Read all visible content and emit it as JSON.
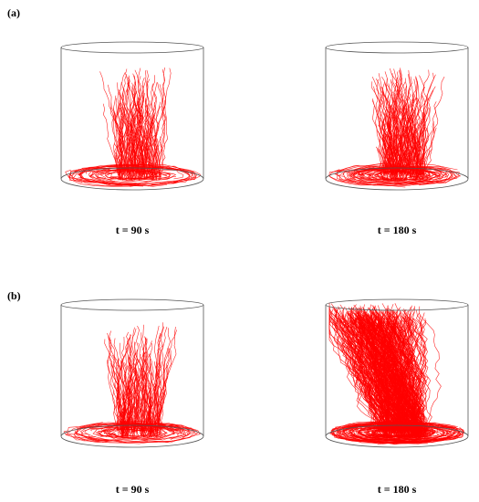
{
  "panels": [
    {
      "label": "(a)",
      "frames": [
        {
          "caption": "t = 90 s"
        },
        {
          "caption": "t = 180 s"
        }
      ]
    },
    {
      "label": "(b)",
      "frames": [
        {
          "caption": "t = 90 s"
        },
        {
          "caption": "t = 180 s"
        }
      ]
    }
  ]
}
